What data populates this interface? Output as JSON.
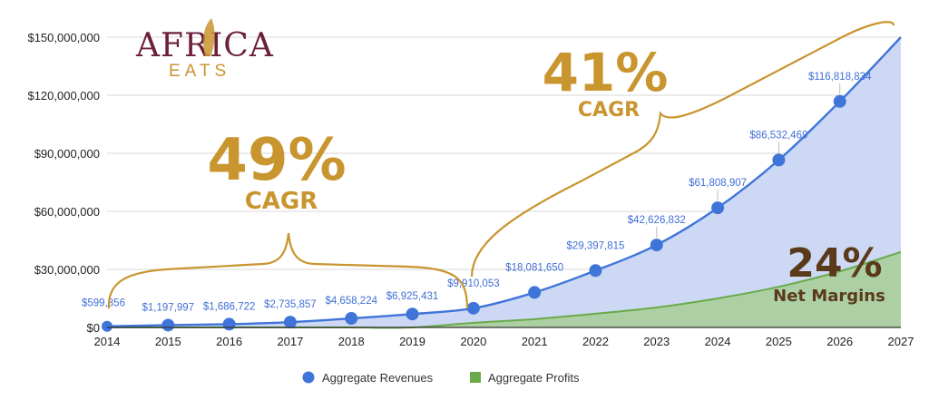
{
  "logo": {
    "word1": "AFRICA",
    "word2": "EATS",
    "color": "#6b1f3a",
    "accent": "#c8952f"
  },
  "annotations": {
    "cagr1_value": "49%",
    "cagr1_label": "CAGR",
    "cagr2_value": "41%",
    "cagr2_label": "CAGR",
    "margin_value": "24%",
    "margin_label": "Net Margins"
  },
  "colors": {
    "revenue": "#3f75d9",
    "revenue_fill": "#c9d6f3",
    "profit": "#6aaa4a",
    "profit_fill": "#a9cf9b",
    "annotation": "#c8952f",
    "margin": "#5a3a1a"
  },
  "chart_data": {
    "type": "area",
    "x": [
      2014,
      2015,
      2016,
      2017,
      2018,
      2019,
      2020,
      2021,
      2022,
      2023,
      2024,
      2025,
      2026,
      2027
    ],
    "xlim": [
      2014,
      2027
    ],
    "ylim": [
      0,
      150000000
    ],
    "yticks": [
      0,
      30000000,
      60000000,
      90000000,
      120000000,
      150000000
    ],
    "ytick_labels": [
      "$0",
      "$30,000,000",
      "$60,000,000",
      "$90,000,000",
      "$120,000,000",
      "$150,000,000"
    ],
    "grid": true,
    "legend_position": "bottom",
    "series": [
      {
        "name": "Aggregate Revenues",
        "values": [
          599856,
          1197997,
          1686722,
          2735857,
          4658224,
          6925431,
          9910053,
          18081650,
          29397815,
          42626832,
          61808907,
          86532469,
          116818834,
          150000000
        ],
        "labels": [
          "$599,856",
          "$1,197,997",
          "$1,686,722",
          "$2,735,857",
          "$4,658,224",
          "$6,925,431",
          "$9,910,053",
          "$18,081,650",
          "$29,397,815",
          "$42,626,832",
          "$61,808,907",
          "$86,532,469",
          "$116,818,834",
          ""
        ]
      },
      {
        "name": "Aggregate Profits",
        "values": [
          0,
          0,
          0,
          0,
          0,
          0,
          2400000,
          4300000,
          7100000,
          10300000,
          15000000,
          21000000,
          29000000,
          39000000
        ]
      }
    ]
  }
}
